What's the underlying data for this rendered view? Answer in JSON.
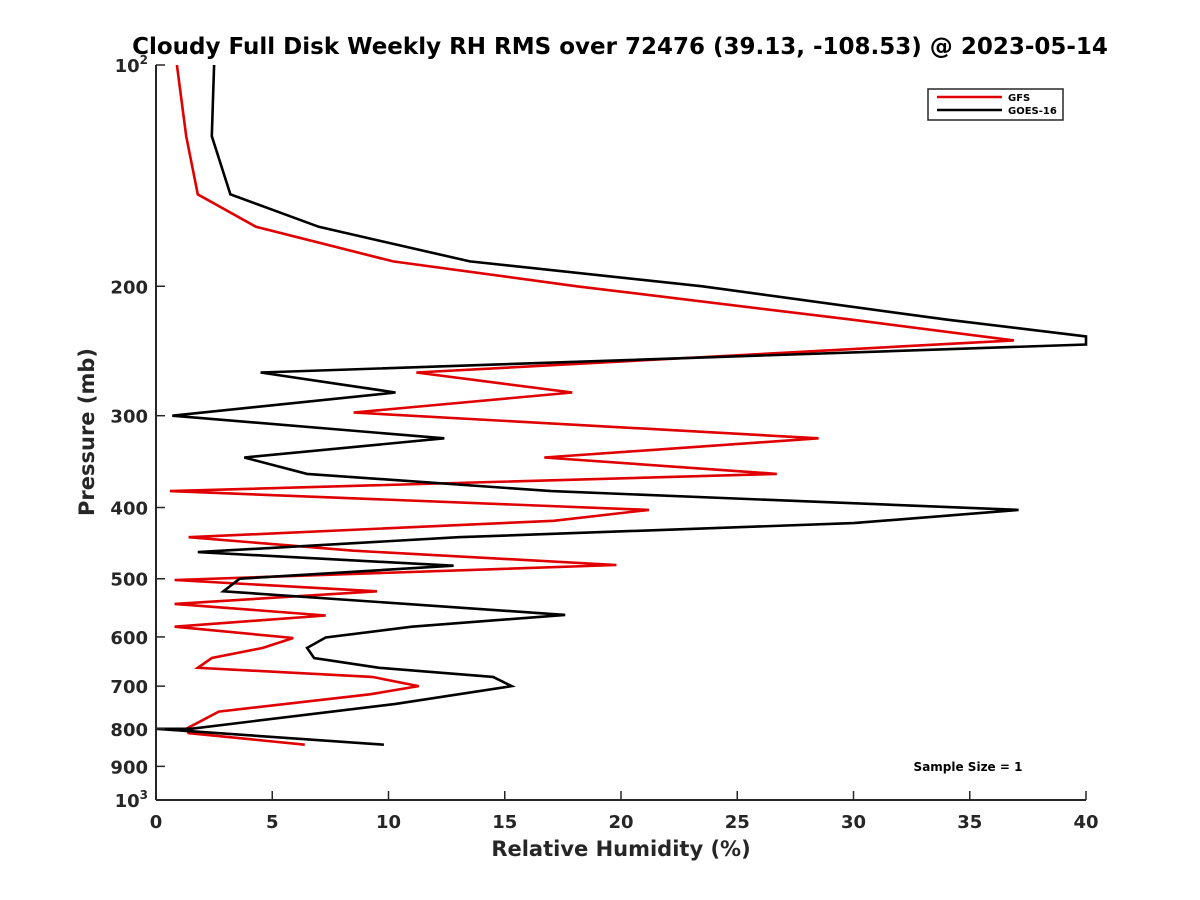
{
  "chart_data": {
    "type": "line",
    "title": "Cloudy Full Disk Weekly RH RMS over 72476 (39.13, -108.53) @ 2023-05-14",
    "xlabel": "Relative Humidity (%)",
    "ylabel": "Pressure (mb)",
    "xlim": [
      0,
      40
    ],
    "ylim": [
      100,
      1000
    ],
    "y_scale": "log",
    "y_reversed": true,
    "grid": false,
    "legend_position": "top-right",
    "xticks": [
      0,
      5,
      10,
      15,
      20,
      25,
      30,
      35,
      40
    ],
    "yticks": [
      {
        "value": 100,
        "base": "10",
        "exp": "2"
      },
      {
        "value": 200,
        "label": "200"
      },
      {
        "value": 300,
        "label": "300"
      },
      {
        "value": 400,
        "label": "400"
      },
      {
        "value": 500,
        "label": "500"
      },
      {
        "value": 600,
        "label": "600"
      },
      {
        "value": 700,
        "label": "700"
      },
      {
        "value": 800,
        "label": "800"
      },
      {
        "value": 900,
        "label": "900"
      },
      {
        "value": 1000,
        "base": "10",
        "exp": "3"
      }
    ],
    "series": [
      {
        "name": "GFS",
        "color": "#e00000",
        "points": [
          [
            0.9,
            100
          ],
          [
            1.3,
            125
          ],
          [
            1.8,
            150
          ],
          [
            4.3,
            166
          ],
          [
            10.2,
            185
          ],
          [
            18.1,
            200
          ],
          [
            29.9,
            222
          ],
          [
            36.9,
            237
          ],
          [
            11.2,
            262
          ],
          [
            17.9,
            279
          ],
          [
            8.5,
            297
          ],
          [
            28.5,
            322
          ],
          [
            16.7,
            342
          ],
          [
            26.7,
            360
          ],
          [
            0.6,
            380
          ],
          [
            21.2,
            403
          ],
          [
            17.1,
            417
          ],
          [
            1.4,
            439
          ],
          [
            8.5,
            458
          ],
          [
            19.8,
            479
          ],
          [
            0.8,
            502
          ],
          [
            9.5,
            520
          ],
          [
            0.8,
            541
          ],
          [
            7.3,
            561
          ],
          [
            0.8,
            581
          ],
          [
            5.9,
            602
          ],
          [
            4.6,
            621
          ],
          [
            2.4,
            641
          ],
          [
            1.8,
            661
          ],
          [
            9.3,
            680
          ],
          [
            11.3,
            700
          ],
          [
            9.2,
            718
          ],
          [
            2.7,
            758
          ],
          [
            1.3,
            800
          ],
          [
            1.4,
            811
          ],
          [
            6.4,
            841
          ]
        ]
      },
      {
        "name": "GOES-16",
        "color": "#000000",
        "points": [
          [
            2.5,
            100
          ],
          [
            2.4,
            125
          ],
          [
            3.2,
            150
          ],
          [
            7.0,
            166
          ],
          [
            13.5,
            185
          ],
          [
            23.5,
            200
          ],
          [
            34.0,
            222
          ],
          [
            40.0,
            234
          ],
          [
            40.0,
            240
          ],
          [
            4.5,
            262
          ],
          [
            10.3,
            279
          ],
          [
            0.7,
            300
          ],
          [
            12.4,
            322
          ],
          [
            3.8,
            342
          ],
          [
            6.5,
            360
          ],
          [
            17.0,
            380
          ],
          [
            37.1,
            403
          ],
          [
            30.0,
            420
          ],
          [
            13.0,
            439
          ],
          [
            1.8,
            460
          ],
          [
            12.8,
            480
          ],
          [
            3.6,
            500
          ],
          [
            2.9,
            520
          ],
          [
            17.6,
            560
          ],
          [
            11.0,
            581
          ],
          [
            7.3,
            601
          ],
          [
            6.5,
            621
          ],
          [
            6.8,
            641
          ],
          [
            9.6,
            661
          ],
          [
            14.5,
            680
          ],
          [
            15.3,
            700
          ],
          [
            10.3,
            740
          ],
          [
            1.5,
            800
          ],
          [
            0.0,
            800
          ],
          [
            9.8,
            841
          ]
        ]
      }
    ],
    "annotations": [
      "Sample Size = 1"
    ]
  }
}
